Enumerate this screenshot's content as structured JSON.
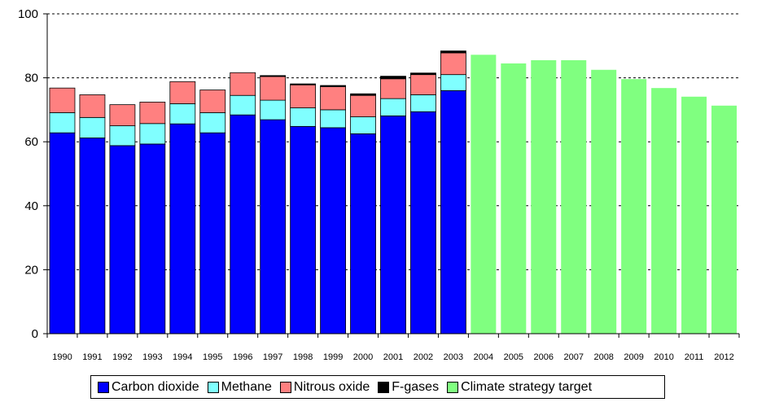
{
  "chart_data": {
    "type": "bar",
    "stacked": true,
    "categories": [
      "1990",
      "1991",
      "1992",
      "1993",
      "1994",
      "1995",
      "1996",
      "1997",
      "1998",
      "1999",
      "2000",
      "2001",
      "2002",
      "2003",
      "2004",
      "2005",
      "2006",
      "2007",
      "2008",
      "2009",
      "2010",
      "2011",
      "2012"
    ],
    "series": [
      {
        "name": "Carbon dioxide",
        "color": "#0000ff",
        "values": [
          62.8,
          61.2,
          58.8,
          59.3,
          65.6,
          62.8,
          68.4,
          66.9,
          64.8,
          64.4,
          62.5,
          68.1,
          69.4,
          76.0,
          null,
          null,
          null,
          null,
          null,
          null,
          null,
          null,
          null
        ]
      },
      {
        "name": "Methane",
        "color": "#80ffff",
        "values": [
          6.3,
          6.4,
          6.2,
          6.4,
          6.3,
          6.3,
          6.1,
          6.1,
          5.8,
          5.6,
          5.3,
          5.4,
          5.3,
          5.0,
          null,
          null,
          null,
          null,
          null,
          null,
          null,
          null,
          null
        ]
      },
      {
        "name": "Nitrous oxide",
        "color": "#ff8080",
        "values": [
          7.7,
          7.1,
          6.6,
          6.7,
          6.9,
          7.1,
          7.1,
          7.4,
          7.2,
          7.2,
          6.7,
          6.2,
          6.3,
          6.8,
          null,
          null,
          null,
          null,
          null,
          null,
          null,
          null,
          null
        ]
      },
      {
        "name": "F-gases",
        "color": "#000000",
        "values": [
          0,
          0,
          0,
          0,
          0,
          0,
          0,
          0.3,
          0.3,
          0.4,
          0.5,
          0.8,
          0.5,
          0.6,
          null,
          null,
          null,
          null,
          null,
          null,
          null,
          null,
          null
        ]
      },
      {
        "name": "Climate strategy target",
        "color": "#80ff80",
        "values": [
          null,
          null,
          null,
          null,
          null,
          null,
          null,
          null,
          null,
          null,
          null,
          null,
          null,
          null,
          87.2,
          84.5,
          85.5,
          85.5,
          82.5,
          79.6,
          76.8,
          74.1,
          71.3
        ]
      }
    ],
    "ylim": [
      0,
      100
    ],
    "yticks": [
      0,
      20,
      40,
      60,
      80,
      100
    ],
    "title": "",
    "xlabel": "",
    "ylabel": "",
    "grid": "horizontal dashed",
    "legend_position": "bottom"
  }
}
